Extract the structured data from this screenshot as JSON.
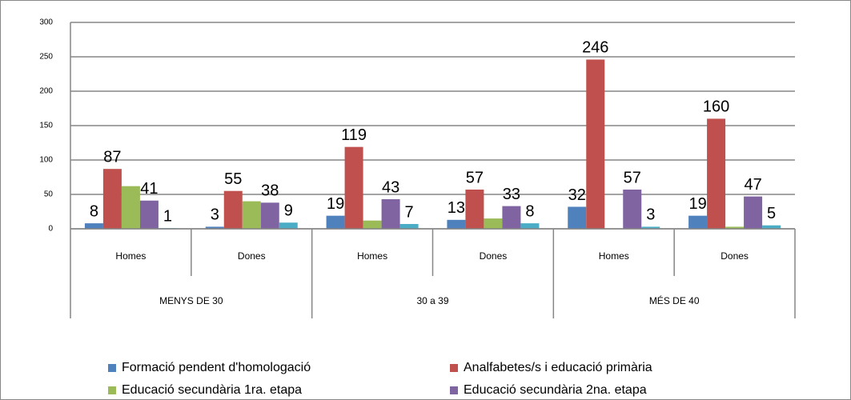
{
  "chart_data": {
    "type": "bar",
    "categories": [
      "Homes",
      "Dones",
      "Homes",
      "Dones",
      "Homes",
      "Dones"
    ],
    "groups": [
      "MENYS DE 30",
      "30 a 39",
      "MÉS DE 40"
    ],
    "series": [
      {
        "name": "Formació pendent d'homologació",
        "color": "#4f81bd",
        "values": [
          8,
          3,
          19,
          13,
          32,
          19
        ],
        "show_labels": true
      },
      {
        "name": "Analfabetes/s i  educació primària",
        "color": "#c0504d",
        "values": [
          87,
          55,
          119,
          57,
          246,
          160
        ],
        "show_labels": true
      },
      {
        "name": "Educació secundària 1ra. etapa",
        "color": "#9bbb59",
        "values": [
          62,
          40,
          12,
          15,
          0,
          3
        ],
        "show_labels": false
      },
      {
        "name": "Educació secundària 2na. etapa",
        "color": "#8064a2",
        "values": [
          41,
          38,
          43,
          33,
          57,
          47
        ],
        "show_labels": true
      },
      {
        "color": "#4bacc6",
        "values": [
          1,
          9,
          7,
          8,
          3,
          5
        ],
        "show_labels": true
      }
    ],
    "ylim": [
      0,
      300
    ],
    "yticks": [
      0,
      50,
      100,
      150,
      200,
      250,
      300
    ],
    "grid": true,
    "legend": "bottom"
  }
}
